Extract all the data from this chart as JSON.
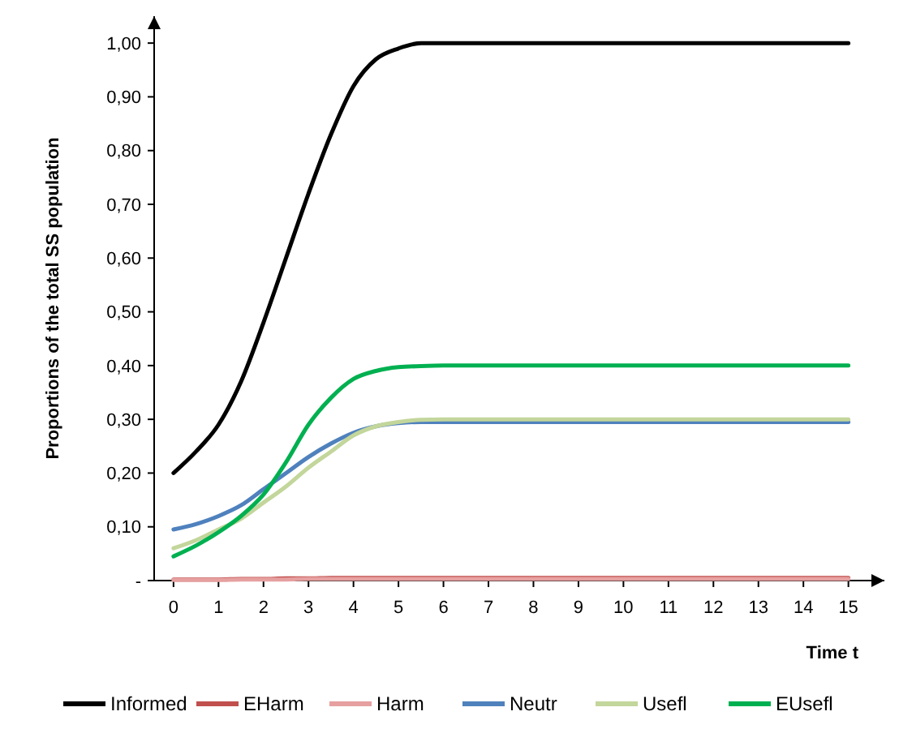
{
  "chart_data": {
    "type": "line",
    "xlabel": "Time t",
    "ylabel": "Proportions of the total SS population",
    "xlim": [
      -0.43,
      15.8
    ],
    "xticks": [
      0,
      1,
      2,
      3,
      4,
      5,
      6,
      7,
      8,
      9,
      10,
      11,
      12,
      13,
      14,
      15
    ],
    "ylim": [
      0,
      1.05
    ],
    "yticks": [
      {
        "value": 0,
        "label": "-"
      },
      {
        "value": 0.1,
        "label": "0,10"
      },
      {
        "value": 0.2,
        "label": "0,20"
      },
      {
        "value": 0.3,
        "label": "0,30"
      },
      {
        "value": 0.4,
        "label": "0,40"
      },
      {
        "value": 0.5,
        "label": "0,50"
      },
      {
        "value": 0.6,
        "label": "0,60"
      },
      {
        "value": 0.7,
        "label": "0,70"
      },
      {
        "value": 0.8,
        "label": "0,80"
      },
      {
        "value": 0.9,
        "label": "0,90"
      },
      {
        "value": 1,
        "label": "1,00"
      }
    ],
    "grid": false,
    "legend": "bottom",
    "marker": "none",
    "line_style": "solid",
    "x": [
      0,
      0.5,
      1,
      1.5,
      2,
      2.5,
      3,
      3.5,
      4,
      4.5,
      5,
      5.5,
      6,
      8,
      10,
      12,
      15
    ],
    "series": [
      {
        "name": "Informed",
        "color": "#000000",
        "values": [
          0.2,
          0.24,
          0.29,
          0.37,
          0.48,
          0.6,
          0.72,
          0.83,
          0.92,
          0.97,
          0.99,
          1.0,
          1.0,
          1.0,
          1.0,
          1.0,
          1.0
        ]
      },
      {
        "name": "EHarm",
        "color": "#c0504d",
        "values": [
          0.002,
          0.002,
          0.002,
          0.003,
          0.003,
          0.004,
          0.004,
          0.005,
          0.005,
          0.005,
          0.005,
          0.005,
          0.005,
          0.005,
          0.005,
          0.005,
          0.005
        ]
      },
      {
        "name": "Harm",
        "color": "#e6a0a0",
        "values": [
          0.001,
          0.001,
          0.001,
          0.002,
          0.002,
          0.002,
          0.003,
          0.003,
          0.003,
          0.003,
          0.003,
          0.003,
          0.003,
          0.003,
          0.003,
          0.003,
          0.003
        ]
      },
      {
        "name": "Neutr",
        "color": "#4f81bd",
        "values": [
          0.095,
          0.105,
          0.12,
          0.14,
          0.17,
          0.2,
          0.23,
          0.255,
          0.275,
          0.287,
          0.293,
          0.295,
          0.295,
          0.295,
          0.295,
          0.295,
          0.295
        ]
      },
      {
        "name": "Usefl",
        "color": "#c3d69b",
        "values": [
          0.06,
          0.075,
          0.095,
          0.115,
          0.145,
          0.175,
          0.21,
          0.24,
          0.27,
          0.287,
          0.295,
          0.299,
          0.3,
          0.3,
          0.3,
          0.3,
          0.3
        ]
      },
      {
        "name": "EUsefl",
        "color": "#00b050",
        "values": [
          0.045,
          0.065,
          0.09,
          0.12,
          0.16,
          0.22,
          0.29,
          0.34,
          0.375,
          0.39,
          0.397,
          0.399,
          0.4,
          0.4,
          0.4,
          0.4,
          0.4
        ]
      }
    ]
  }
}
